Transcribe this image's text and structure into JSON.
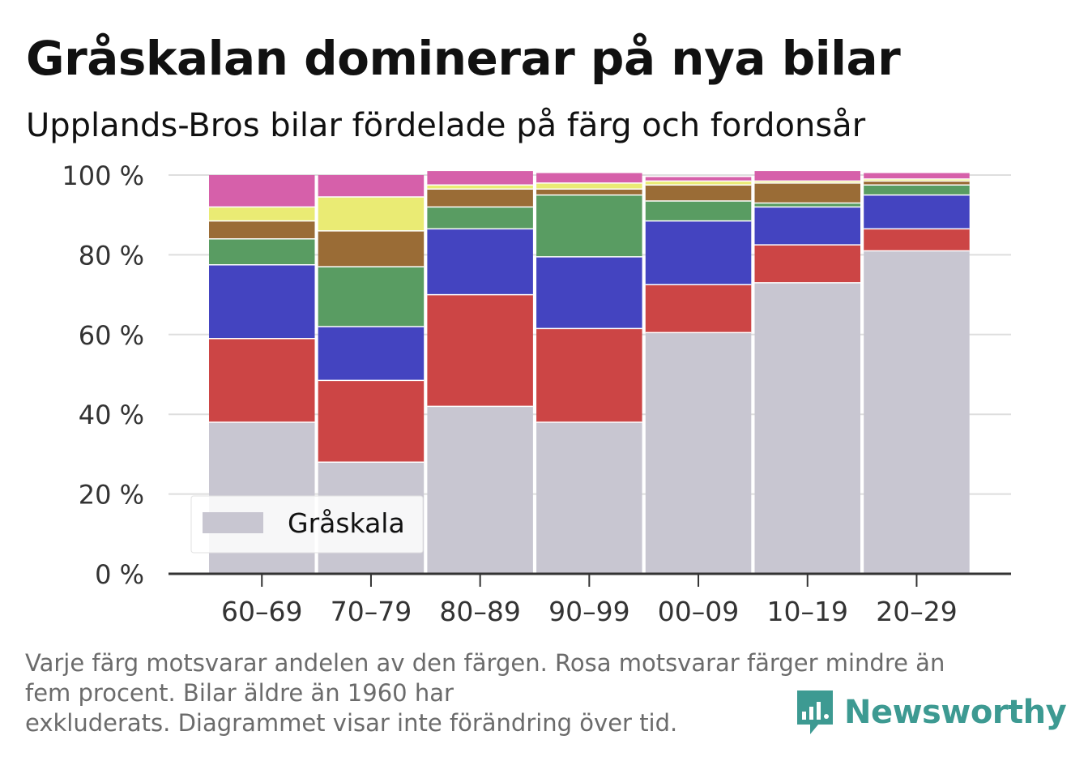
{
  "header": {
    "title": "Gråskalan dominerar på nya bilar",
    "subtitle": "Upplands-Bros bilar fördelade på färg och fordonsår"
  },
  "footnote": {
    "line1": "Varje färg motsvarar andelen av den färgen. Rosa motsvarar färger mindre än",
    "line2": "fem procent. Bilar äldre än 1960 har",
    "line3": "exkluderats. Diagrammet visar inte förändring över tid."
  },
  "brand": {
    "label": "Newsworthy",
    "icon": "newsworthy-logo-icon",
    "color": "#3d9a92"
  },
  "legend": {
    "label": "Gråskala",
    "color": "#c8c6d1",
    "placement": "bottom-left"
  },
  "chart_data": {
    "type": "bar",
    "stacked": true,
    "categories": [
      "60–69",
      "70–79",
      "80–89",
      "90–99",
      "00–09",
      "10–19",
      "20–29"
    ],
    "y_ticks": [
      "0 %",
      "20 %",
      "40 %",
      "60 %",
      "80 %",
      "100 %"
    ],
    "ylim": [
      0,
      100
    ],
    "grid": true,
    "series": [
      {
        "name": "Gråskala",
        "color": "#c8c6d1",
        "values": [
          38,
          28,
          42,
          38,
          60.5,
          73,
          81
        ]
      },
      {
        "color": "#cc4545",
        "values": [
          21,
          20.5,
          28,
          23.5,
          12,
          9.5,
          5.5
        ]
      },
      {
        "color": "#4444c0",
        "values": [
          18.5,
          13.5,
          16.5,
          18,
          16,
          9.5,
          8.5
        ]
      },
      {
        "color": "#599c62",
        "values": [
          6.5,
          15,
          5.5,
          15.5,
          5,
          1,
          2.5
        ]
      },
      {
        "color": "#9a6c36",
        "values": [
          4.5,
          9,
          4.5,
          1.5,
          4,
          5,
          1
        ]
      },
      {
        "color": "#eaeb74",
        "values": [
          3.5,
          8.5,
          1,
          1.5,
          1,
          0.5,
          0.5
        ]
      },
      {
        "color": "#d660aa",
        "values": [
          8,
          5.5,
          3.5,
          2.5,
          1,
          2.5,
          1.5
        ]
      }
    ]
  }
}
